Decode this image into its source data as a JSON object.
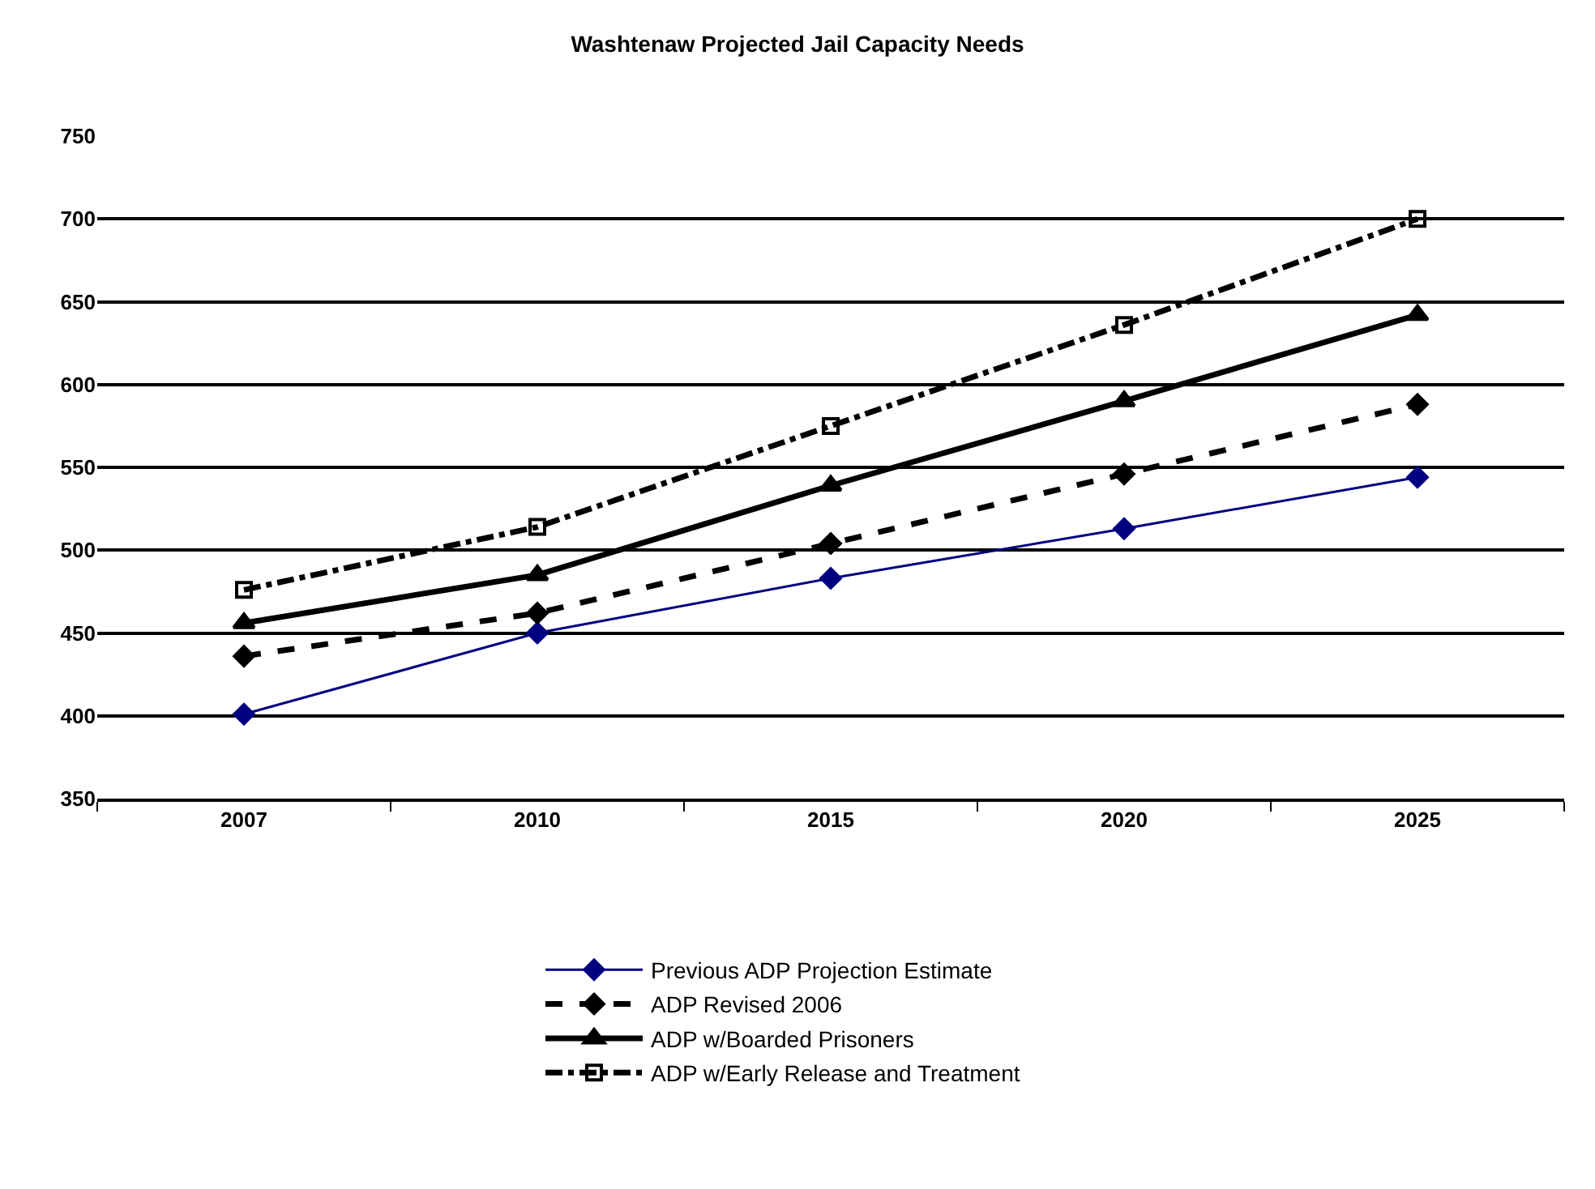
{
  "chart_data": {
    "type": "line",
    "title": "Washtenaw Projected Jail Capacity Needs",
    "categories": [
      "2007",
      "2010",
      "2015",
      "2020",
      "2025"
    ],
    "series": [
      {
        "name": "Previous ADP Projection Estimate",
        "color": "#000080",
        "marker": "diamond",
        "line_style": "solid",
        "values": [
          401,
          450,
          483,
          513,
          544
        ]
      },
      {
        "name": "ADP Revised 2006",
        "color": "#000000",
        "marker": "diamond",
        "line_style": "dashed",
        "values": [
          436,
          462,
          504,
          546,
          588
        ]
      },
      {
        "name": "ADP w/Boarded Prisoners",
        "color": "#000000",
        "marker": "triangle",
        "line_style": "solid",
        "values": [
          456,
          485,
          539,
          590,
          642
        ]
      },
      {
        "name": "ADP w/Early Release and Treatment",
        "color": "#000000",
        "marker": "square",
        "line_style": "dashdot",
        "values": [
          476,
          514,
          575,
          636,
          700
        ]
      }
    ],
    "ylim": [
      350,
      750
    ],
    "yticks": [
      350,
      400,
      450,
      500,
      550,
      600,
      650,
      700,
      750
    ],
    "grid": "y",
    "legend": "bottom"
  }
}
